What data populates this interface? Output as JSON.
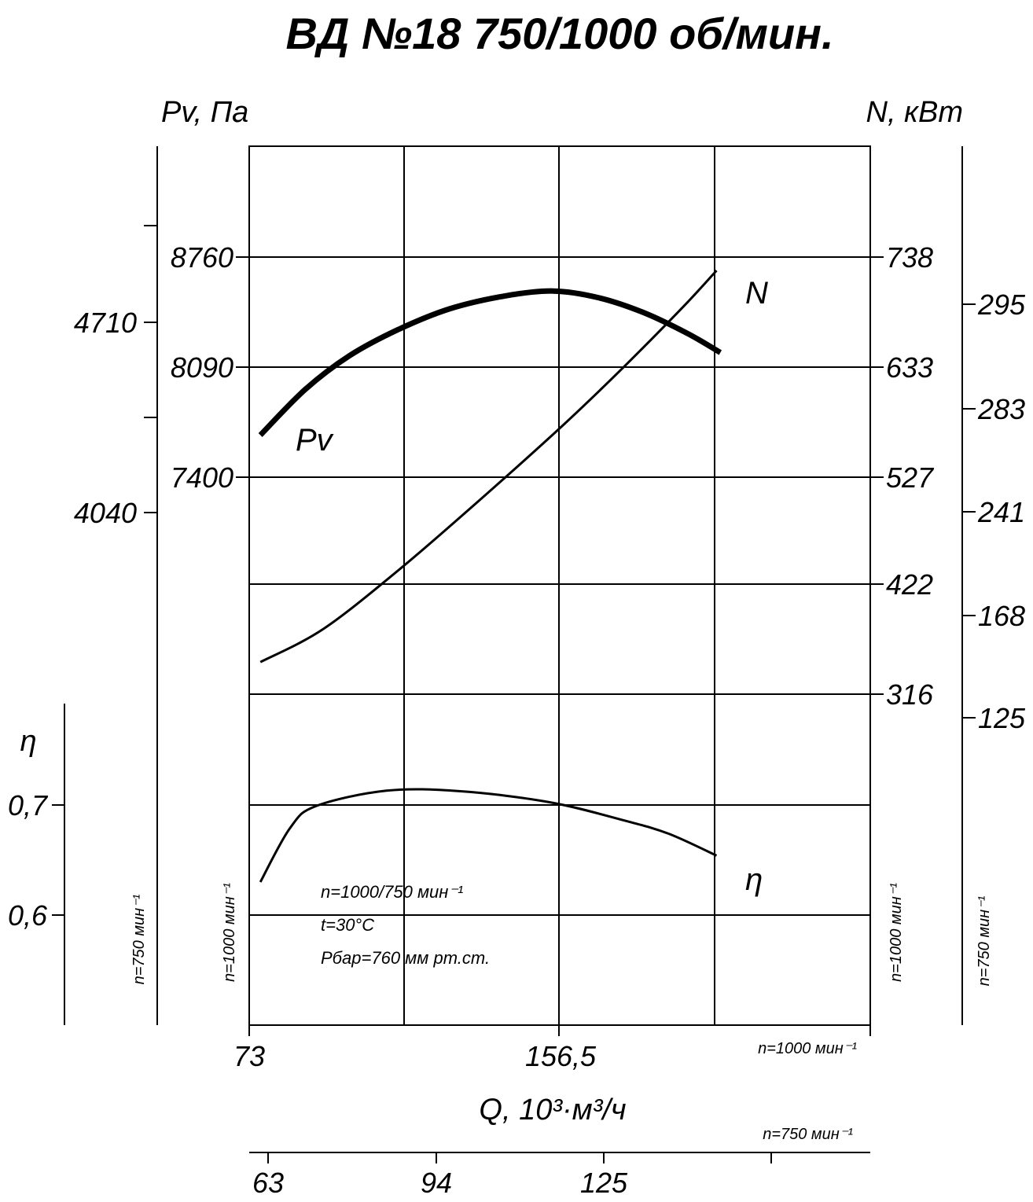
{
  "chart_data": {
    "type": "line",
    "title": "ВД №18 750/1000 об/мин.",
    "ylabel_pressure": "Pv, Па",
    "ylabel_power": "N, кВт",
    "ylabel_efficiency": "η",
    "xlabel": "Q, 10³·м³/ч",
    "pressure_axis_1000": {
      "label": "n=1000 мин⁻¹",
      "ticks": [
        "8760",
        "8090",
        "7400"
      ]
    },
    "pressure_axis_750": {
      "label": "n=750 мин⁻¹",
      "ticks": [
        "4710",
        "4040"
      ]
    },
    "power_axis_1000": {
      "label": "n=1000 мин⁻¹",
      "ticks": [
        "738",
        "633",
        "527",
        "422",
        "316"
      ]
    },
    "power_axis_750": {
      "label": "n=750 мин⁻¹",
      "ticks": [
        "295",
        "283",
        "241",
        "168",
        "125"
      ]
    },
    "efficiency_axis": {
      "ticks": [
        "0,7",
        "0,6"
      ]
    },
    "x_axis_1000": {
      "label": "n=1000 мин⁻¹",
      "ticks": [
        "73",
        "156,5"
      ]
    },
    "x_axis_750": {
      "label": "n=750 мин⁻¹",
      "ticks": [
        "63",
        "94",
        "125"
      ]
    },
    "notes": [
      "n=1000/750 мин⁻¹",
      "t=30°C",
      "Pбар=760 мм рт.ст."
    ],
    "series": [
      {
        "name": "Pv",
        "points": [
          [
            76,
            7660
          ],
          [
            88,
            7940
          ],
          [
            100,
            8150
          ],
          [
            113,
            8310
          ],
          [
            127,
            8440
          ],
          [
            142,
            8520
          ],
          [
            155,
            8550
          ],
          [
            167,
            8510
          ],
          [
            179,
            8420
          ],
          [
            191,
            8290
          ],
          [
            200,
            8170
          ]
        ]
      },
      {
        "name": "N",
        "points": [
          [
            76,
            347
          ],
          [
            93,
            379
          ],
          [
            114,
            438
          ],
          [
            135,
            503
          ],
          [
            158,
            577
          ],
          [
            174,
            632
          ],
          [
            190,
            690
          ],
          [
            199,
            725
          ]
        ]
      },
      {
        "name": "η",
        "points": [
          [
            76,
            0.63
          ],
          [
            84,
            0.679
          ],
          [
            91,
            0.699
          ],
          [
            110,
            0.713
          ],
          [
            130,
            0.7125
          ],
          [
            154,
            0.7025
          ],
          [
            174,
            0.686
          ],
          [
            186,
            0.674
          ],
          [
            199,
            0.654
          ]
        ]
      }
    ]
  }
}
